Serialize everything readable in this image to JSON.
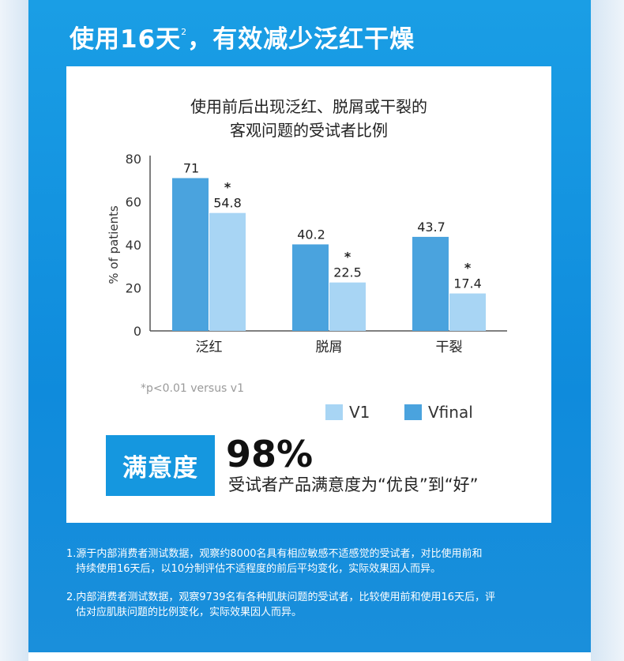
{
  "headline": {
    "main": "使用16天",
    "superscript": "2",
    "rest": "，有效减少泛红干燥"
  },
  "chart_title": {
    "line1": "使用前后出现泛红、脱屑或干裂的",
    "line2": "客观问题的受试者比例"
  },
  "chart_data": {
    "type": "bar",
    "categories": [
      "泛红",
      "脱屑",
      "干裂"
    ],
    "series": [
      {
        "name": "Vfinal",
        "values": [
          71,
          40.2,
          43.7
        ],
        "labels": [
          "71",
          "40.2",
          "43.7"
        ],
        "color": "#4aa3de"
      },
      {
        "name": "V1",
        "values": [
          54.8,
          22.5,
          17.4
        ],
        "labels": [
          "54.8",
          "22.5",
          "17.4"
        ],
        "color": "#a8d5f4",
        "significance_marker": "*"
      }
    ],
    "ylabel": "% of patients",
    "ylim": [
      0,
      80
    ],
    "yticks": [
      0,
      20,
      40,
      60,
      80
    ],
    "footnote": "*p<0.01 versus v1",
    "legend": [
      "V1",
      "Vfinal"
    ],
    "legend_position": "bottom-right"
  },
  "satisfaction": {
    "label": "满意度",
    "value": "98%",
    "description": "受试者产品满意度为“优良”到“好”"
  },
  "notes": [
    {
      "line1": "1.源于内部消费者测试数据，观察约8000名具有相应敏感不适感觉的受试者，对比使用前和",
      "line2": "持续使用16天后，以10分制评估不适程度的前后平均变化，实际效果因人而异。"
    },
    {
      "line1": "2.内部消费者测试数据，观察9739名有各种肌肤问题的受试者，比较使用前和使用16天后，评",
      "line2": "估对应肌肤问题的比例变化，实际效果因人而异。"
    }
  ],
  "colors": {
    "background_blue": "#1a9ee5",
    "bar_dark": "#4aa3de",
    "bar_light": "#a8d5f4",
    "badge_blue": "#1597df"
  }
}
